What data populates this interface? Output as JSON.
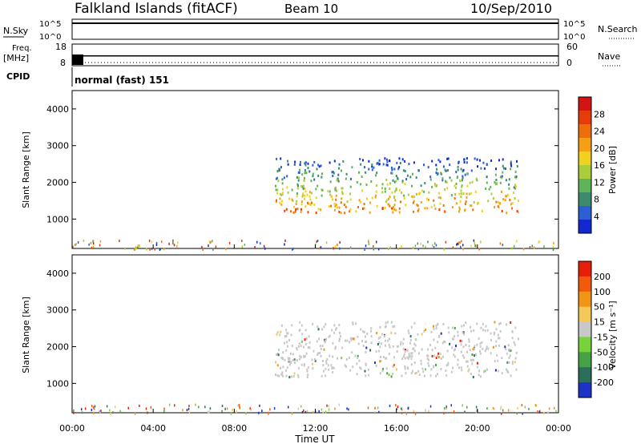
{
  "header": {
    "station": "Falkland Islands (fitACF)",
    "beam": "Beam 10",
    "date": "10/Sep/2010"
  },
  "strips": {
    "nsky_label": "N.Sky",
    "nsky_ticks": [
      "10^5",
      "10^0"
    ],
    "nsearch_label": "N.Search",
    "nsearch_ticks": [
      "10^5",
      "10^0"
    ],
    "freq_label_1": "Freq.",
    "freq_label_2": "[MHz]",
    "freq_ticks": [
      "18",
      "8"
    ],
    "nave_label": "Nave",
    "nave_ticks": [
      "60",
      "0"
    ],
    "cpid_label": "CPID",
    "cpid_value": "normal (fast) 151"
  },
  "chart_data": [
    {
      "type": "heatmap",
      "name": "power",
      "ylabel": "Slant Range [km]",
      "ylim": [
        200,
        4500
      ],
      "yticks": [
        "4000",
        "3000",
        "2000",
        "1000"
      ],
      "xlim": [
        "00:00",
        "24:00"
      ],
      "colorbar": {
        "label": "Power [dB]",
        "ticks": [
          "28",
          "24",
          "20",
          "16",
          "12",
          "8",
          "4"
        ],
        "colors": [
          "#1428d2",
          "#2d5fd2",
          "#3b8c6e",
          "#5fb45a",
          "#aacd3c",
          "#f0d21e",
          "#f5a014",
          "#f06e0a",
          "#e63c0a",
          "#d21414"
        ]
      },
      "echo_band": {
        "start_ut": "10:00",
        "end_ut": "22:00",
        "range_km": [
          1200,
          2700
        ]
      }
    },
    {
      "type": "heatmap",
      "name": "velocity",
      "ylabel": "Slant Range [km]",
      "ylim": [
        200,
        4500
      ],
      "yticks": [
        "4000",
        "3000",
        "2000",
        "1000"
      ],
      "xticks": [
        "00:00",
        "04:00",
        "08:00",
        "12:00",
        "16:00",
        "20:00",
        "00:00"
      ],
      "xlabel": "Time UT",
      "colorbar": {
        "label": "Velocity [m s⁻¹]",
        "ticks": [
          "200",
          "100",
          "50",
          "15",
          "-15",
          "-50",
          "-100",
          "-200"
        ],
        "colors": [
          "#1e32c8",
          "#2d6e5a",
          "#46a046",
          "#78d23c",
          "#c8c8c8",
          "#f5c85a",
          "#f09614",
          "#f05a0a",
          "#e61e0a"
        ]
      },
      "echo_band": {
        "start_ut": "10:00",
        "end_ut": "22:00",
        "range_km": [
          1200,
          2700
        ]
      }
    }
  ]
}
